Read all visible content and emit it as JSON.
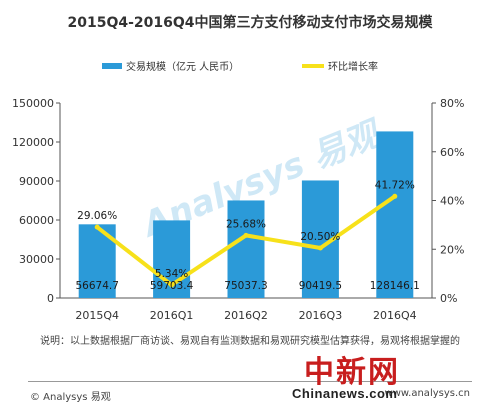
{
  "chart_data": {
    "type": "bar+line",
    "title": "2015Q4-2016Q4中国第三方支付移动支付市场交易规模",
    "categories": [
      "2015Q4",
      "2016Q1",
      "2016Q2",
      "2016Q3",
      "2016Q4"
    ],
    "series": [
      {
        "name": "交易规模（亿元 人民币）",
        "type": "bar",
        "axis": "left",
        "values": [
          56674.7,
          59703.4,
          75037.3,
          90419.5,
          128146.1
        ],
        "labels": [
          "56674.7",
          "59703.4",
          "75037.3",
          "90419.5",
          "128146.1"
        ]
      },
      {
        "name": "环比增长率",
        "type": "line",
        "axis": "right",
        "values": [
          29.06,
          5.34,
          25.68,
          20.5,
          41.72
        ],
        "labels": [
          "29.06%",
          "5.34%",
          "25.68%",
          "20.50%",
          "41.72%"
        ]
      }
    ],
    "y_left": {
      "ylim": [
        0,
        150000
      ],
      "ticks": [
        "0",
        "30000",
        "60000",
        "90000",
        "120000",
        "150000"
      ]
    },
    "y_right": {
      "ylim": [
        0,
        80
      ],
      "ticks": [
        "0%",
        "20%",
        "40%",
        "60%",
        "80%"
      ]
    },
    "legend_position": "top",
    "grid": false,
    "colors": {
      "bar": "#2b9ad8",
      "line": "#f7e11a",
      "axis": "#555555"
    }
  },
  "note": "说明：以上数据根据厂商访谈、易观自有监测数据和易观研究模型估算获得，易观将根据掌握的",
  "footer": {
    "left": "© Analysys 易观",
    "right": "www.analysys.cn"
  },
  "watermark": {
    "brand": "Analysys 易观",
    "site_cn": "中新网",
    "site_url": "Chinanews.com"
  }
}
